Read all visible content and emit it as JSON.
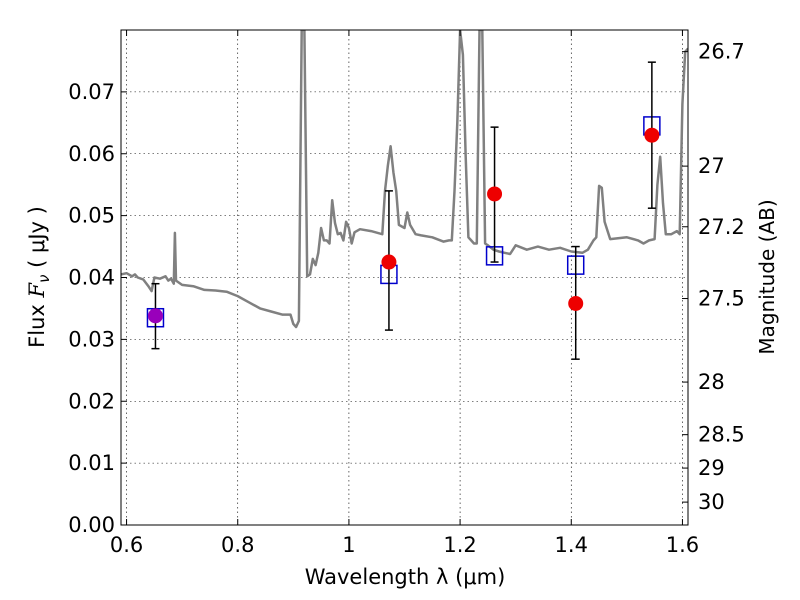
{
  "chart_data": {
    "type": "scatter",
    "title": "",
    "xlabel": "Wavelength  λ (μm)",
    "ylabel_parts": [
      "Flux  ",
      "F",
      "ν",
      "  (  μJy  )"
    ],
    "y2label": "Magnitude (AB)",
    "xlim": [
      0.59,
      1.61
    ],
    "ylim": [
      0.0,
      0.08
    ],
    "grid": true,
    "x_ticks": [
      0.6,
      0.8,
      1.0,
      1.2,
      1.4,
      1.6
    ],
    "x_tick_labels": [
      "0.6",
      "0.8",
      "1",
      "1.2",
      "1.4",
      "1.6"
    ],
    "y_ticks": [
      0.0,
      0.01,
      0.02,
      0.03,
      0.04,
      0.05,
      0.06,
      0.07
    ],
    "y_tick_labels": [
      "0.00",
      "0.01",
      "0.02",
      "0.03",
      "0.04",
      "0.05",
      "0.06",
      "0.07"
    ],
    "y2_ticks": [
      {
        "label": "26.7",
        "flux": 0.0765
      },
      {
        "label": "27",
        "flux": 0.058
      },
      {
        "label": "27.2",
        "flux": 0.0482
      },
      {
        "label": "27.5",
        "flux": 0.0366
      },
      {
        "label": "28",
        "flux": 0.0231
      },
      {
        "label": "28.5",
        "flux": 0.0146
      },
      {
        "label": "29",
        "flux": 0.0092
      },
      {
        "label": "30",
        "flux": 0.0037
      }
    ],
    "series": [
      {
        "kind": "model_sed",
        "color": "#808080",
        "points": [
          [
            0.59,
            0.0405
          ],
          [
            0.6,
            0.0407
          ],
          [
            0.61,
            0.0402
          ],
          [
            0.615,
            0.0405
          ],
          [
            0.62,
            0.04
          ],
          [
            0.63,
            0.0397
          ],
          [
            0.64,
            0.0385
          ],
          [
            0.645,
            0.0378
          ],
          [
            0.65,
            0.04
          ],
          [
            0.66,
            0.0398
          ],
          [
            0.67,
            0.0402
          ],
          [
            0.675,
            0.0395
          ],
          [
            0.68,
            0.0398
          ],
          [
            0.685,
            0.039
          ],
          [
            0.687,
            0.0472
          ],
          [
            0.689,
            0.0395
          ],
          [
            0.7,
            0.0388
          ],
          [
            0.72,
            0.0386
          ],
          [
            0.74,
            0.038
          ],
          [
            0.76,
            0.0379
          ],
          [
            0.78,
            0.0377
          ],
          [
            0.8,
            0.037
          ],
          [
            0.82,
            0.036
          ],
          [
            0.84,
            0.035
          ],
          [
            0.86,
            0.0345
          ],
          [
            0.88,
            0.034
          ],
          [
            0.895,
            0.034
          ],
          [
            0.9,
            0.0325
          ],
          [
            0.905,
            0.032
          ],
          [
            0.91,
            0.033
          ],
          [
            0.915,
            0.08
          ],
          [
            0.92,
            0.08
          ],
          [
            0.925,
            0.0402
          ],
          [
            0.93,
            0.0405
          ],
          [
            0.935,
            0.043
          ],
          [
            0.94,
            0.042
          ],
          [
            0.945,
            0.044
          ],
          [
            0.95,
            0.048
          ],
          [
            0.955,
            0.046
          ],
          [
            0.96,
            0.046
          ],
          [
            0.965,
            0.0455
          ],
          [
            0.97,
            0.0525
          ],
          [
            0.975,
            0.0488
          ],
          [
            0.98,
            0.047
          ],
          [
            0.985,
            0.0472
          ],
          [
            0.99,
            0.046
          ],
          [
            0.995,
            0.049
          ],
          [
            1.0,
            0.048
          ],
          [
            1.005,
            0.0455
          ],
          [
            1.01,
            0.0473
          ],
          [
            1.02,
            0.0478
          ],
          [
            1.04,
            0.0475
          ],
          [
            1.06,
            0.047
          ],
          [
            1.065,
            0.054
          ],
          [
            1.07,
            0.058
          ],
          [
            1.075,
            0.0612
          ],
          [
            1.08,
            0.057
          ],
          [
            1.085,
            0.054
          ],
          [
            1.09,
            0.0485
          ],
          [
            1.1,
            0.048
          ],
          [
            1.105,
            0.0505
          ],
          [
            1.11,
            0.0485
          ],
          [
            1.12,
            0.047
          ],
          [
            1.13,
            0.0468
          ],
          [
            1.15,
            0.0465
          ],
          [
            1.17,
            0.0458
          ],
          [
            1.18,
            0.046
          ],
          [
            1.185,
            0.046
          ],
          [
            1.19,
            0.054
          ],
          [
            1.195,
            0.065
          ],
          [
            1.2,
            0.08
          ],
          [
            1.205,
            0.076
          ],
          [
            1.21,
            0.06
          ],
          [
            1.215,
            0.0465
          ],
          [
            1.22,
            0.046
          ],
          [
            1.225,
            0.0455
          ],
          [
            1.23,
            0.0455
          ],
          [
            1.235,
            0.08
          ],
          [
            1.24,
            0.08
          ],
          [
            1.245,
            0.0455
          ],
          [
            1.25,
            0.0452
          ],
          [
            1.26,
            0.0445
          ],
          [
            1.27,
            0.0442
          ],
          [
            1.28,
            0.044
          ],
          [
            1.29,
            0.0438
          ],
          [
            1.3,
            0.0452
          ],
          [
            1.32,
            0.0445
          ],
          [
            1.34,
            0.045
          ],
          [
            1.36,
            0.0445
          ],
          [
            1.38,
            0.0448
          ],
          [
            1.4,
            0.0442
          ],
          [
            1.42,
            0.044
          ],
          [
            1.43,
            0.0445
          ],
          [
            1.44,
            0.046
          ],
          [
            1.445,
            0.0465
          ],
          [
            1.45,
            0.0548
          ],
          [
            1.455,
            0.0545
          ],
          [
            1.46,
            0.049
          ],
          [
            1.47,
            0.0462
          ],
          [
            1.5,
            0.0465
          ],
          [
            1.52,
            0.046
          ],
          [
            1.53,
            0.0455
          ],
          [
            1.54,
            0.046
          ],
          [
            1.55,
            0.0462
          ],
          [
            1.555,
            0.055
          ],
          [
            1.56,
            0.0595
          ],
          [
            1.565,
            0.052
          ],
          [
            1.57,
            0.047
          ],
          [
            1.58,
            0.047
          ],
          [
            1.59,
            0.0475
          ],
          [
            1.595,
            0.047
          ],
          [
            1.6,
            0.068
          ],
          [
            1.605,
            0.0765
          ],
          [
            1.61,
            0.077
          ]
        ]
      },
      {
        "kind": "model_photometry",
        "marker": "open-square",
        "color": "#0000cc",
        "points": [
          {
            "x": 0.652,
            "y": 0.0335
          },
          {
            "x": 1.072,
            "y": 0.0405
          },
          {
            "x": 1.262,
            "y": 0.0435
          },
          {
            "x": 1.408,
            "y": 0.042
          },
          {
            "x": 1.545,
            "y": 0.0645
          }
        ]
      },
      {
        "kind": "observed_photometry",
        "marker": "filled-circle",
        "color": "#ee0000",
        "errorbar_color": "#000000",
        "points": [
          {
            "x": 0.652,
            "y": 0.0338,
            "ylo": 0.0285,
            "yhi": 0.039,
            "color": "#9900bb"
          },
          {
            "x": 1.072,
            "y": 0.0425,
            "ylo": 0.0315,
            "yhi": 0.054
          },
          {
            "x": 1.262,
            "y": 0.0535,
            "ylo": 0.0425,
            "yhi": 0.0643
          },
          {
            "x": 1.408,
            "y": 0.0358,
            "ylo": 0.0268,
            "yhi": 0.045
          },
          {
            "x": 1.545,
            "y": 0.063,
            "ylo": 0.0512,
            "yhi": 0.0748
          }
        ]
      }
    ]
  }
}
